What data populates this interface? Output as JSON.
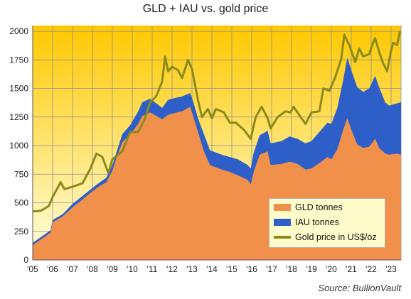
{
  "chart_data": {
    "type": "area",
    "title": "GLD + IAU vs. gold price",
    "source": "Source:  BullionVault",
    "colors": {
      "gld": "#f0904a",
      "iau": "#2e5fc9",
      "gold_price": "#8a8a1c",
      "background_top": "#ffc800",
      "background_bottom": "#ffffe0",
      "grid": "#909090"
    },
    "x_range": [
      2005.0,
      2023.5
    ],
    "x_tick_labels": [
      "'05",
      "'06",
      "'07",
      "'08",
      "'09",
      "'10",
      "'11",
      "'12",
      "'13",
      "'14",
      "'15",
      "'16",
      "'17",
      "'18",
      "'19",
      "'20",
      "'21",
      "'22",
      "'23"
    ],
    "x_tick_values": [
      2005,
      2006,
      2007,
      2008,
      2009,
      2010,
      2011,
      2012,
      2013,
      2014,
      2015,
      2016,
      2017,
      2018,
      2019,
      2020,
      2021,
      2022,
      2023
    ],
    "y_range": [
      0,
      2050
    ],
    "y_ticks": [
      0,
      250,
      500,
      750,
      1000,
      1250,
      1500,
      1750,
      2000
    ],
    "grid": true,
    "legend_position": "bottom-right",
    "series": [
      {
        "name": "GLD tonnes",
        "style": "stacked-area",
        "points": [
          [
            2005.0,
            130
          ],
          [
            2005.5,
            190
          ],
          [
            2005.9,
            240
          ],
          [
            2006.0,
            330
          ],
          [
            2006.5,
            380
          ],
          [
            2007.0,
            460
          ],
          [
            2007.5,
            530
          ],
          [
            2008.0,
            600
          ],
          [
            2008.3,
            640
          ],
          [
            2008.7,
            680
          ],
          [
            2009.0,
            780
          ],
          [
            2009.2,
            890
          ],
          [
            2009.5,
            1030
          ],
          [
            2009.9,
            1100
          ],
          [
            2010.3,
            1190
          ],
          [
            2010.5,
            1260
          ],
          [
            2010.9,
            1290
          ],
          [
            2011.5,
            1230
          ],
          [
            2011.8,
            1270
          ],
          [
            2012.0,
            1280
          ],
          [
            2012.5,
            1300
          ],
          [
            2012.9,
            1340
          ],
          [
            2013.0,
            1290
          ],
          [
            2013.3,
            1120
          ],
          [
            2013.6,
            950
          ],
          [
            2013.9,
            830
          ],
          [
            2014.5,
            790
          ],
          [
            2014.9,
            770
          ],
          [
            2015.3,
            740
          ],
          [
            2015.8,
            700
          ],
          [
            2015.95,
            660
          ],
          [
            2016.1,
            770
          ],
          [
            2016.4,
            920
          ],
          [
            2016.8,
            950
          ],
          [
            2016.95,
            830
          ],
          [
            2017.5,
            840
          ],
          [
            2017.9,
            860
          ],
          [
            2018.3,
            840
          ],
          [
            2018.7,
            790
          ],
          [
            2019.0,
            800
          ],
          [
            2019.5,
            860
          ],
          [
            2019.8,
            900
          ],
          [
            2020.0,
            880
          ],
          [
            2020.3,
            970
          ],
          [
            2020.6,
            1140
          ],
          [
            2020.8,
            1240
          ],
          [
            2021.0,
            1140
          ],
          [
            2021.3,
            1010
          ],
          [
            2021.6,
            980
          ],
          [
            2021.9,
            990
          ],
          [
            2022.2,
            1060
          ],
          [
            2022.4,
            980
          ],
          [
            2022.7,
            930
          ],
          [
            2022.9,
            920
          ],
          [
            2023.3,
            930
          ],
          [
            2023.5,
            920
          ]
        ]
      },
      {
        "name": "IAU tonnes",
        "style": "stacked-area-top",
        "points": [
          [
            2005.0,
            150
          ],
          [
            2005.9,
            260
          ],
          [
            2006.0,
            350
          ],
          [
            2006.5,
            400
          ],
          [
            2007.0,
            490
          ],
          [
            2007.5,
            560
          ],
          [
            2008.0,
            630
          ],
          [
            2008.3,
            670
          ],
          [
            2008.7,
            720
          ],
          [
            2009.0,
            830
          ],
          [
            2009.2,
            940
          ],
          [
            2009.5,
            1100
          ],
          [
            2009.9,
            1180
          ],
          [
            2010.3,
            1300
          ],
          [
            2010.5,
            1380
          ],
          [
            2010.9,
            1410
          ],
          [
            2011.5,
            1330
          ],
          [
            2011.8,
            1400
          ],
          [
            2012.0,
            1410
          ],
          [
            2012.5,
            1430
          ],
          [
            2012.9,
            1460
          ],
          [
            2013.0,
            1420
          ],
          [
            2013.3,
            1240
          ],
          [
            2013.6,
            1100
          ],
          [
            2013.9,
            960
          ],
          [
            2014.5,
            920
          ],
          [
            2014.9,
            900
          ],
          [
            2015.3,
            880
          ],
          [
            2015.8,
            830
          ],
          [
            2015.95,
            800
          ],
          [
            2016.1,
            940
          ],
          [
            2016.4,
            1090
          ],
          [
            2016.8,
            1130
          ],
          [
            2016.95,
            1020
          ],
          [
            2017.5,
            1040
          ],
          [
            2017.9,
            1080
          ],
          [
            2018.3,
            1060
          ],
          [
            2018.7,
            1020
          ],
          [
            2019.0,
            1040
          ],
          [
            2019.5,
            1140
          ],
          [
            2019.8,
            1200
          ],
          [
            2020.0,
            1190
          ],
          [
            2020.3,
            1330
          ],
          [
            2020.6,
            1580
          ],
          [
            2020.8,
            1770
          ],
          [
            2021.0,
            1660
          ],
          [
            2021.3,
            1510
          ],
          [
            2021.6,
            1470
          ],
          [
            2021.9,
            1500
          ],
          [
            2022.2,
            1610
          ],
          [
            2022.4,
            1510
          ],
          [
            2022.7,
            1380
          ],
          [
            2022.9,
            1350
          ],
          [
            2023.3,
            1370
          ],
          [
            2023.5,
            1380
          ]
        ]
      },
      {
        "name": "Gold price in US$/oz",
        "style": "line",
        "points": [
          [
            2005.0,
            425
          ],
          [
            2005.4,
            430
          ],
          [
            2005.8,
            470
          ],
          [
            2006.0,
            550
          ],
          [
            2006.4,
            680
          ],
          [
            2006.6,
            620
          ],
          [
            2007.0,
            640
          ],
          [
            2007.5,
            670
          ],
          [
            2007.9,
            800
          ],
          [
            2008.2,
            930
          ],
          [
            2008.5,
            900
          ],
          [
            2008.8,
            760
          ],
          [
            2009.0,
            880
          ],
          [
            2009.5,
            950
          ],
          [
            2009.9,
            1120
          ],
          [
            2010.3,
            1120
          ],
          [
            2010.6,
            1220
          ],
          [
            2010.9,
            1380
          ],
          [
            2011.2,
            1430
          ],
          [
            2011.5,
            1560
          ],
          [
            2011.65,
            1780
          ],
          [
            2011.8,
            1650
          ],
          [
            2012.0,
            1690
          ],
          [
            2012.3,
            1660
          ],
          [
            2012.5,
            1590
          ],
          [
            2012.8,
            1750
          ],
          [
            2013.0,
            1670
          ],
          [
            2013.3,
            1400
          ],
          [
            2013.5,
            1250
          ],
          [
            2013.8,
            1320
          ],
          [
            2014.0,
            1240
          ],
          [
            2014.2,
            1320
          ],
          [
            2014.6,
            1290
          ],
          [
            2014.9,
            1200
          ],
          [
            2015.2,
            1200
          ],
          [
            2015.6,
            1140
          ],
          [
            2015.95,
            1060
          ],
          [
            2016.2,
            1250
          ],
          [
            2016.5,
            1340
          ],
          [
            2016.8,
            1240
          ],
          [
            2016.95,
            1150
          ],
          [
            2017.3,
            1250
          ],
          [
            2017.7,
            1300
          ],
          [
            2017.95,
            1290
          ],
          [
            2018.1,
            1340
          ],
          [
            2018.5,
            1240
          ],
          [
            2018.7,
            1190
          ],
          [
            2019.0,
            1290
          ],
          [
            2019.4,
            1300
          ],
          [
            2019.6,
            1500
          ],
          [
            2019.9,
            1480
          ],
          [
            2020.2,
            1600
          ],
          [
            2020.5,
            1760
          ],
          [
            2020.65,
            1970
          ],
          [
            2020.9,
            1880
          ],
          [
            2021.2,
            1730
          ],
          [
            2021.4,
            1850
          ],
          [
            2021.6,
            1780
          ],
          [
            2021.9,
            1800
          ],
          [
            2022.1,
            1900
          ],
          [
            2022.2,
            1940
          ],
          [
            2022.4,
            1820
          ],
          [
            2022.6,
            1720
          ],
          [
            2022.8,
            1650
          ],
          [
            2022.95,
            1790
          ],
          [
            2023.1,
            1900
          ],
          [
            2023.3,
            1880
          ],
          [
            2023.45,
            2000
          ]
        ]
      }
    ]
  }
}
